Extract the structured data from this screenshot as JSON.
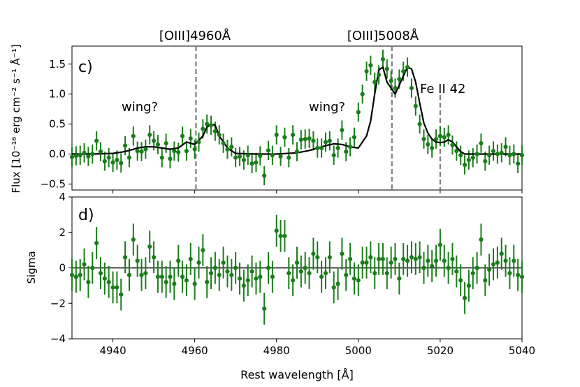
{
  "colors": {
    "points": "#1a7d1a",
    "model": "#000000",
    "marker_lines": "#7f7f7f",
    "zero_line": "#000000"
  },
  "labels": {
    "line1": "[OIII]4960Å",
    "line2": "[OIII]5008Å",
    "line3": "Fe II 42",
    "wing1": "wing?",
    "wing2": "wing?"
  },
  "chart_data": [
    {
      "type": "scatter",
      "panel": "c)",
      "title": "",
      "xlabel": "Rest wavelength [Å]",
      "ylabel": "Flux [10⁻¹⁶ erg cm⁻² s⁻¹ Å⁻¹]",
      "xlim": [
        4930,
        5040
      ],
      "ylim": [
        -0.6,
        1.8
      ],
      "xticks": [
        4940,
        4960,
        4980,
        5000,
        5020,
        5040
      ],
      "yticks": [
        -0.5,
        0.0,
        0.5,
        1.0,
        1.5
      ],
      "ytick_labels": [
        "−0.5",
        "0.0",
        "0.5",
        "1.0",
        "1.5"
      ],
      "vlines": [
        4960.3,
        5008.2,
        5020.0
      ],
      "series": [
        {
          "name": "data",
          "style": "errorbar",
          "x": [
            4930,
            4931,
            4932,
            4933,
            4934,
            4935,
            4936,
            4937,
            4938,
            4939,
            4940,
            4941,
            4942,
            4943,
            4944,
            4945,
            4946,
            4947,
            4948,
            4949,
            4950,
            4951,
            4952,
            4953,
            4954,
            4955,
            4956,
            4957,
            4958,
            4959,
            4960,
            4961,
            4962,
            4963,
            4964,
            4965,
            4966,
            4967,
            4968,
            4969,
            4970,
            4971,
            4972,
            4973,
            4974,
            4975,
            4976,
            4977,
            4978,
            4979,
            4980,
            4981,
            4982,
            4983,
            4984,
            4985,
            4986,
            4987,
            4988,
            4989,
            4990,
            4991,
            4992,
            4993,
            4994,
            4995,
            4996,
            4997,
            4998,
            4999,
            5000,
            5001,
            5002,
            5003,
            5004,
            5005,
            5006,
            5007,
            5008,
            5009,
            5010,
            5011,
            5012,
            5013,
            5014,
            5015,
            5016,
            5017,
            5018,
            5019,
            5020,
            5021,
            5022,
            5023,
            5024,
            5025,
            5026,
            5027,
            5028,
            5029,
            5030,
            5031,
            5032,
            5033,
            5034,
            5035,
            5036,
            5037,
            5038,
            5039,
            5040
          ],
          "y": [
            -0.05,
            -0.03,
            -0.02,
            0.02,
            -0.04,
            0.0,
            0.22,
            0.04,
            -0.12,
            -0.06,
            -0.14,
            -0.1,
            -0.15,
            0.14,
            -0.06,
            0.3,
            0.05,
            0.04,
            0.08,
            0.32,
            0.22,
            0.16,
            -0.06,
            0.18,
            -0.08,
            0.05,
            0.03,
            0.3,
            0.05,
            0.26,
            0.08,
            0.2,
            0.42,
            0.5,
            0.48,
            0.38,
            0.32,
            0.18,
            0.08,
            0.12,
            -0.06,
            -0.04,
            -0.1,
            -0.02,
            -0.16,
            -0.14,
            -0.03,
            -0.36,
            0.06,
            -0.02,
            0.32,
            -0.04,
            0.28,
            -0.06,
            0.32,
            0.04,
            0.24,
            0.25,
            0.26,
            0.22,
            0.1,
            0.1,
            0.2,
            0.22,
            -0.02,
            0.1,
            0.4,
            0.04,
            0.12,
            0.28,
            0.7,
            1.0,
            1.38,
            1.48,
            1.2,
            1.32,
            1.58,
            1.42,
            1.22,
            1.1,
            1.25,
            1.38,
            1.45,
            1.1,
            0.8,
            0.5,
            0.25,
            0.16,
            0.1,
            0.25,
            0.3,
            0.28,
            0.32,
            0.15,
            0.05,
            -0.02,
            -0.18,
            -0.1,
            -0.06,
            0.0,
            0.18,
            -0.12,
            -0.02,
            0.05,
            0.0,
            0.02,
            0.12,
            -0.02,
            0.0,
            -0.16,
            -0.02
          ],
          "yerr": 0.16
        },
        {
          "name": "model",
          "style": "line",
          "x": [
            4930,
            4935,
            4940,
            4942,
            4944,
            4946,
            4948,
            4950,
            4952,
            4954,
            4956,
            4958,
            4960,
            4962,
            4963,
            4964,
            4965,
            4966,
            4968,
            4970,
            4975,
            4980,
            4985,
            4988,
            4990,
            4992,
            4994,
            4996,
            4998,
            5000,
            5002,
            5003,
            5004,
            5005,
            5006,
            5007,
            5008,
            5009,
            5010,
            5011,
            5012,
            5013,
            5014,
            5015,
            5016,
            5017,
            5018,
            5019,
            5020,
            5021,
            5022,
            5023,
            5024,
            5025,
            5026,
            5028,
            5030,
            5035,
            5040
          ],
          "y": [
            0.0,
            0.0,
            0.01,
            0.03,
            0.06,
            0.1,
            0.12,
            0.12,
            0.1,
            0.08,
            0.1,
            0.2,
            0.16,
            0.3,
            0.45,
            0.5,
            0.48,
            0.3,
            0.1,
            0.01,
            0.0,
            0.0,
            0.02,
            0.06,
            0.1,
            0.14,
            0.17,
            0.16,
            0.12,
            0.1,
            0.3,
            0.55,
            1.0,
            1.4,
            1.45,
            1.2,
            1.1,
            1.0,
            1.15,
            1.3,
            1.45,
            1.42,
            1.2,
            0.85,
            0.52,
            0.35,
            0.25,
            0.2,
            0.19,
            0.2,
            0.24,
            0.2,
            0.12,
            0.04,
            0.0,
            0.0,
            0.0,
            0.0,
            0.0
          ]
        }
      ]
    },
    {
      "type": "scatter",
      "panel": "d)",
      "title": "",
      "xlabel": "Rest wavelength [Å]",
      "ylabel": "Sigma",
      "xlim": [
        4930,
        5040
      ],
      "ylim": [
        -4,
        4
      ],
      "xticks": [
        4940,
        4960,
        4980,
        5000,
        5020,
        5040
      ],
      "yticks": [
        -4,
        -2,
        0,
        2,
        4
      ],
      "ytick_labels": [
        "−4",
        "−2",
        "0",
        "2",
        "4"
      ],
      "hlines": [
        0
      ],
      "series": [
        {
          "name": "residuals",
          "style": "errorbar",
          "x": [
            4930,
            4931,
            4932,
            4933,
            4934,
            4935,
            4936,
            4937,
            4938,
            4939,
            4940,
            4941,
            4942,
            4943,
            4944,
            4945,
            4946,
            4947,
            4948,
            4949,
            4950,
            4951,
            4952,
            4953,
            4954,
            4955,
            4956,
            4957,
            4958,
            4959,
            4960,
            4961,
            4962,
            4963,
            4964,
            4965,
            4966,
            4967,
            4968,
            4969,
            4970,
            4971,
            4972,
            4973,
            4974,
            4975,
            4976,
            4977,
            4978,
            4979,
            4980,
            4981,
            4982,
            4983,
            4984,
            4985,
            4986,
            4987,
            4988,
            4989,
            4990,
            4991,
            4992,
            4993,
            4994,
            4995,
            4996,
            4997,
            4998,
            4999,
            5000,
            5001,
            5002,
            5003,
            5004,
            5005,
            5006,
            5007,
            5008,
            5009,
            5010,
            5011,
            5012,
            5013,
            5014,
            5015,
            5016,
            5017,
            5018,
            5019,
            5020,
            5021,
            5022,
            5023,
            5024,
            5025,
            5026,
            5027,
            5028,
            5029,
            5030,
            5031,
            5032,
            5033,
            5034,
            5035,
            5036,
            5037,
            5038,
            5039,
            5040
          ],
          "y": [
            -0.4,
            -0.5,
            -0.4,
            0.2,
            -0.8,
            0.0,
            1.4,
            -0.3,
            -0.6,
            -0.8,
            -1.1,
            -1.1,
            -1.5,
            0.6,
            -0.4,
            1.6,
            0.4,
            -0.4,
            -0.3,
            1.2,
            0.6,
            -0.5,
            -0.5,
            -0.8,
            -0.5,
            -0.9,
            0.4,
            -0.5,
            -0.7,
            0.5,
            -0.9,
            0.3,
            1.0,
            -0.8,
            -0.3,
            0.0,
            -0.4,
            0.3,
            -0.2,
            -0.4,
            0.0,
            -0.6,
            -1.0,
            -0.7,
            -0.2,
            -0.6,
            -0.5,
            -2.3,
            0.0,
            -0.5,
            2.1,
            1.8,
            1.8,
            -0.3,
            -0.7,
            0.3,
            -0.2,
            0.0,
            -0.3,
            0.8,
            0.6,
            -0.5,
            -0.3,
            0.6,
            -1.1,
            -0.9,
            0.8,
            -0.4,
            0.5,
            -0.6,
            -0.7,
            0.3,
            0.3,
            0.6,
            -0.3,
            0.5,
            0.5,
            -0.3,
            0.3,
            0.5,
            -0.6,
            0.5,
            0.4,
            0.6,
            0.5,
            0.6,
            0.0,
            0.4,
            0.1,
            0.4,
            1.3,
            0.4,
            0.0,
            0.5,
            -0.2,
            -0.7,
            -1.7,
            -1.0,
            -0.3,
            0.0,
            1.6,
            -0.7,
            -0.1,
            0.2,
            0.3,
            0.8,
            0.4,
            -0.3,
            0.4,
            -0.4,
            -0.5
          ],
          "yerr": 0.9
        }
      ]
    }
  ]
}
